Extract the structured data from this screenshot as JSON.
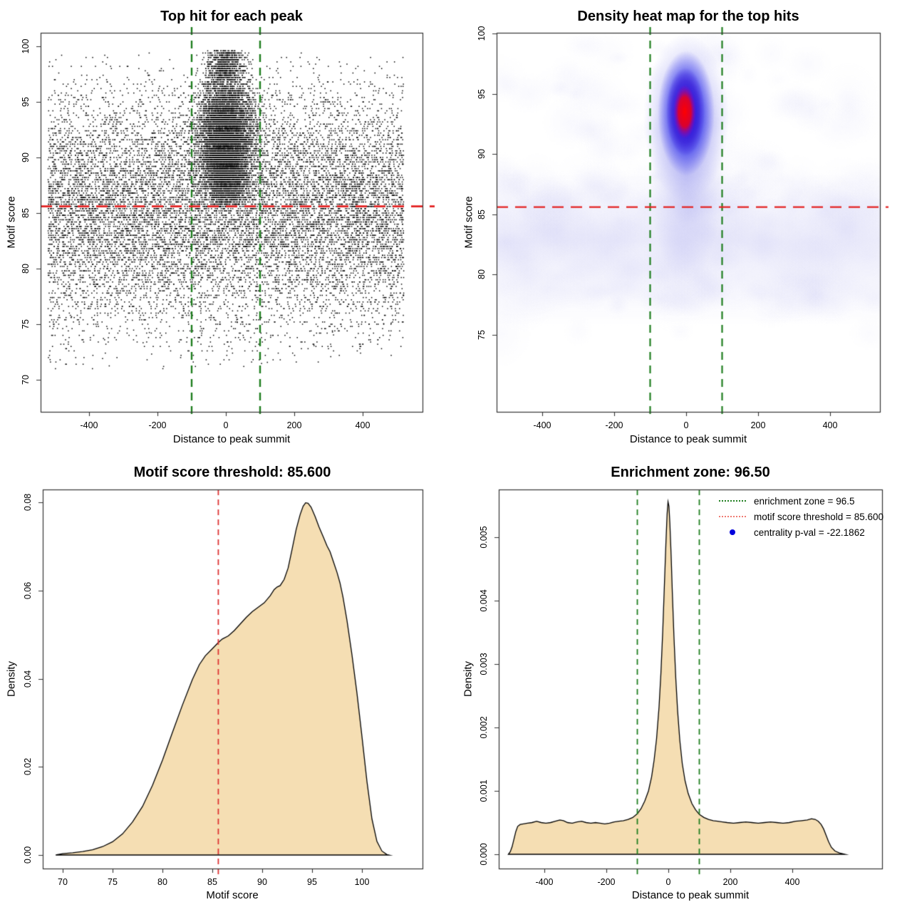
{
  "chart_data": [
    {
      "type": "scatter",
      "title": "Top hit for each peak",
      "xlabel": "Distance to peak summit",
      "ylabel": "Motif score",
      "x_tick_values": [
        -400,
        -200,
        0,
        200,
        400
      ],
      "x_tick_labels": [
        "-400",
        "-200",
        "0",
        "200",
        "400"
      ],
      "y_tick_values": [
        70,
        75,
        80,
        85,
        90,
        95,
        100
      ],
      "y_tick_labels": [
        "70",
        "75",
        "80",
        "85",
        "90",
        "95",
        "100"
      ],
      "xlim": [
        -540,
        575
      ],
      "ylim": [
        67,
        101.3
      ],
      "point_color": "#000000",
      "motif_score_threshold": 85.6,
      "threshold_line": {
        "orientation": "horizontal",
        "value": 85.6,
        "color": "#e32222",
        "style": "dashed"
      },
      "enrichment_zone_lines": {
        "orientation": "vertical",
        "values": [
          -100,
          100
        ],
        "color": "#1e7e1e",
        "style": "dashed"
      },
      "simulation": {
        "seed": 1337,
        "background": {
          "n": 13000,
          "x_min": -520,
          "x_max": 520,
          "y_mean": 85.3,
          "y_sd": 5.3,
          "y_min": 71,
          "y_max": 99.4
        },
        "low_outliers": {
          "n": 40,
          "y_min": 70.8,
          "y_max": 76.5
        },
        "cluster_main": {
          "n": 6000,
          "x_sd": 40,
          "x_clip": 118,
          "y_mean": 92.4,
          "y_sd": 2.5,
          "y_min": 86,
          "y_max": 99.2
        },
        "cluster_lower": {
          "n": 2600,
          "x_sd": 31,
          "x_clip": 112,
          "y_mean": 88.7,
          "y_sd": 1.9,
          "y_min": 85.6,
          "y_max": 96.5
        },
        "cluster_top": {
          "n": 650,
          "x_sd": 27,
          "x_clip": 95,
          "y_min": 97.2,
          "y_max": 99.6
        },
        "score_step": 0.2
      }
    },
    {
      "type": "heatmap",
      "title": "Density heat map for the top hits",
      "xlabel": "Distance to peak summit",
      "ylabel": "Motif score",
      "x_tick_values": [
        -400,
        -200,
        0,
        200,
        400
      ],
      "x_tick_labels": [
        "-400",
        "-200",
        "0",
        "200",
        "400"
      ],
      "y_tick_values": [
        75,
        80,
        85,
        90,
        95,
        100
      ],
      "y_tick_labels": [
        "75",
        "80",
        "85",
        "90",
        "95",
        "100"
      ],
      "xlim": [
        -527,
        539
      ],
      "ylim": [
        73.2,
        100.2
      ],
      "hotspot": {
        "center_x": 0,
        "center_y": 93.5,
        "core_color": "#ff0000",
        "mid_color": "#2303cd",
        "ring_color": "#2323eb",
        "halo_color": "#5f5fe8",
        "core_half_width_x": 32,
        "core_half_width_y": 2.2,
        "halo_half_width_x": 120,
        "halo_half_width_y": 7
      },
      "background_band": {
        "y_from": 77.5,
        "y_to": 88.5,
        "color": "#cdcdf4"
      },
      "wash_seed": 7,
      "threshold_line": {
        "orientation": "horizontal",
        "value": 85.6,
        "color": "#e32222",
        "style": "dashed"
      },
      "enrichment_zone_lines": {
        "orientation": "vertical",
        "values": [
          -100,
          100
        ],
        "color": "#1e7e1e",
        "style": "dashed"
      }
    },
    {
      "type": "area",
      "title": "Motif score threshold: 85.600",
      "xlabel": "Motif score",
      "ylabel": "Density",
      "x_tick_values": [
        70,
        75,
        80,
        85,
        90,
        95,
        100
      ],
      "x_tick_labels": [
        "70",
        "75",
        "80",
        "85",
        "90",
        "95",
        "100"
      ],
      "y_tick_values": [
        0,
        0.02,
        0.04,
        0.06,
        0.08
      ],
      "y_tick_labels": [
        "0.00",
        "0.02",
        "0.04",
        "0.06",
        "0.08"
      ],
      "fill_color": "#f5deb3",
      "line_color": "#000000",
      "threshold_line": {
        "orientation": "vertical",
        "value": 85.6,
        "color": "#dd3333",
        "style": "dashed"
      },
      "points": [
        [
          69.3,
          0
        ],
        [
          70,
          0.0003
        ],
        [
          71,
          0.0005
        ],
        [
          72,
          0.0008
        ],
        [
          73,
          0.0012
        ],
        [
          74,
          0.0019
        ],
        [
          75,
          0.003
        ],
        [
          76,
          0.0048
        ],
        [
          77,
          0.0075
        ],
        [
          78,
          0.011
        ],
        [
          79,
          0.0158
        ],
        [
          80,
          0.0215
        ],
        [
          81,
          0.0278
        ],
        [
          82,
          0.034
        ],
        [
          83,
          0.0398
        ],
        [
          83.7,
          0.0432
        ],
        [
          84.3,
          0.0452
        ],
        [
          85,
          0.0468
        ],
        [
          85.6,
          0.0482
        ],
        [
          86,
          0.049
        ],
        [
          86.6,
          0.0497
        ],
        [
          87.2,
          0.0509
        ],
        [
          87.8,
          0.0524
        ],
        [
          88.4,
          0.0539
        ],
        [
          89,
          0.0552
        ],
        [
          89.6,
          0.0562
        ],
        [
          90.2,
          0.0572
        ],
        [
          90.8,
          0.0588
        ],
        [
          91.2,
          0.0602
        ],
        [
          91.5,
          0.0608
        ],
        [
          91.8,
          0.0611
        ],
        [
          92.2,
          0.0625
        ],
        [
          92.6,
          0.0651
        ],
        [
          93,
          0.0694
        ],
        [
          93.4,
          0.0738
        ],
        [
          93.8,
          0.0772
        ],
        [
          94.1,
          0.0791
        ],
        [
          94.35,
          0.0799
        ],
        [
          94.6,
          0.0798
        ],
        [
          94.9,
          0.0789
        ],
        [
          95.3,
          0.0768
        ],
        [
          95.7,
          0.0744
        ],
        [
          96.1,
          0.0723
        ],
        [
          96.5,
          0.0701
        ],
        [
          96.8,
          0.0688
        ],
        [
          97.1,
          0.0668
        ],
        [
          97.5,
          0.0641
        ],
        [
          97.8,
          0.0617
        ],
        [
          98.1,
          0.0585
        ],
        [
          98.5,
          0.0532
        ],
        [
          99,
          0.0454
        ],
        [
          99.5,
          0.0367
        ],
        [
          100,
          0.0269
        ],
        [
          100.5,
          0.0167
        ],
        [
          101,
          0.0082
        ],
        [
          101.5,
          0.0031
        ],
        [
          102,
          0.0009
        ],
        [
          102.5,
          0.0001
        ],
        [
          102.7,
          0
        ]
      ]
    },
    {
      "type": "area",
      "title": "Enrichment zone: 96.50",
      "xlabel": "Distance to peak summit",
      "ylabel": "Density",
      "x_tick_values": [
        -400,
        -200,
        0,
        200,
        400
      ],
      "x_tick_labels": [
        "-400",
        "-200",
        "0",
        "200",
        "400"
      ],
      "y_tick_values": [
        0,
        0.001,
        0.002,
        0.003,
        0.004,
        0.005
      ],
      "y_tick_labels": [
        "0.000",
        "0.001",
        "0.002",
        "0.003",
        "0.004",
        "0.005"
      ],
      "fill_color": "#f5deb3",
      "line_color": "#000000",
      "enrichment_zone_lines": {
        "orientation": "vertical",
        "values": [
          -100,
          100
        ],
        "color": "#1e7e1e",
        "style": "dashed"
      },
      "legend": {
        "items": [
          {
            "label": "enrichment zone = 96.5",
            "marker": "green-dotted-line",
            "color": "#1e7e1e"
          },
          {
            "label": "motif score threshold = 85.600",
            "marker": "red-dotted-line",
            "color": "#ef7b72"
          },
          {
            "label": "centrality p-val = -22.1862",
            "marker": "blue-dot",
            "color": "#0000dd"
          }
        ]
      },
      "points": [
        [
          -516,
          0
        ],
        [
          -510,
          4e-05
        ],
        [
          -504,
          0.00012
        ],
        [
          -498,
          0.00024
        ],
        [
          -492,
          0.00036
        ],
        [
          -486,
          0.00044
        ],
        [
          -478,
          0.00047
        ],
        [
          -468,
          0.00048
        ],
        [
          -455,
          0.00049
        ],
        [
          -440,
          0.0005
        ],
        [
          -425,
          0.00052
        ],
        [
          -410,
          0.0005
        ],
        [
          -395,
          0.00049
        ],
        [
          -380,
          0.0005
        ],
        [
          -365,
          0.00052
        ],
        [
          -350,
          0.00054
        ],
        [
          -338,
          0.00053
        ],
        [
          -325,
          0.0005
        ],
        [
          -310,
          0.00049
        ],
        [
          -295,
          0.00051
        ],
        [
          -280,
          0.00052
        ],
        [
          -265,
          0.0005
        ],
        [
          -250,
          0.00049
        ],
        [
          -235,
          0.0005
        ],
        [
          -220,
          0.00049
        ],
        [
          -205,
          0.00048
        ],
        [
          -190,
          0.00049
        ],
        [
          -175,
          0.00051
        ],
        [
          -160,
          0.00052
        ],
        [
          -145,
          0.00053
        ],
        [
          -130,
          0.00055
        ],
        [
          -115,
          0.00058
        ],
        [
          -100,
          0.00064
        ],
        [
          -88,
          0.00072
        ],
        [
          -76,
          0.00084
        ],
        [
          -64,
          0.001
        ],
        [
          -54,
          0.00122
        ],
        [
          -46,
          0.00148
        ],
        [
          -38,
          0.00182
        ],
        [
          -30,
          0.00232
        ],
        [
          -24,
          0.00285
        ],
        [
          -18,
          0.00352
        ],
        [
          -13,
          0.0042
        ],
        [
          -8,
          0.00488
        ],
        [
          -4,
          0.00536
        ],
        [
          -1,
          0.00556
        ],
        [
          2,
          0.00549
        ],
        [
          5,
          0.00522
        ],
        [
          9,
          0.00472
        ],
        [
          13,
          0.00412
        ],
        [
          18,
          0.00345
        ],
        [
          24,
          0.00278
        ],
        [
          30,
          0.00226
        ],
        [
          37,
          0.0018
        ],
        [
          45,
          0.00143
        ],
        [
          54,
          0.00116
        ],
        [
          64,
          0.00096
        ],
        [
          76,
          0.0008
        ],
        [
          88,
          0.0007
        ],
        [
          100,
          0.00063
        ],
        [
          115,
          0.00058
        ],
        [
          130,
          0.00055
        ],
        [
          145,
          0.00053
        ],
        [
          160,
          0.00052
        ],
        [
          175,
          0.00051
        ],
        [
          190,
          0.0005
        ],
        [
          210,
          0.00049
        ],
        [
          230,
          0.0005
        ],
        [
          250,
          0.00051
        ],
        [
          270,
          0.0005
        ],
        [
          290,
          0.00049
        ],
        [
          310,
          0.0005
        ],
        [
          330,
          0.00051
        ],
        [
          350,
          0.0005
        ],
        [
          370,
          0.00049
        ],
        [
          390,
          0.0005
        ],
        [
          410,
          0.00052
        ],
        [
          430,
          0.00053
        ],
        [
          448,
          0.00054
        ],
        [
          462,
          0.00056
        ],
        [
          474,
          0.00055
        ],
        [
          484,
          0.00052
        ],
        [
          493,
          0.00047
        ],
        [
          501,
          0.0004
        ],
        [
          509,
          0.0003
        ],
        [
          517,
          0.0002
        ],
        [
          526,
          0.00011
        ],
        [
          538,
          5e-05
        ],
        [
          552,
          2e-05
        ],
        [
          570,
          0
        ]
      ]
    }
  ]
}
